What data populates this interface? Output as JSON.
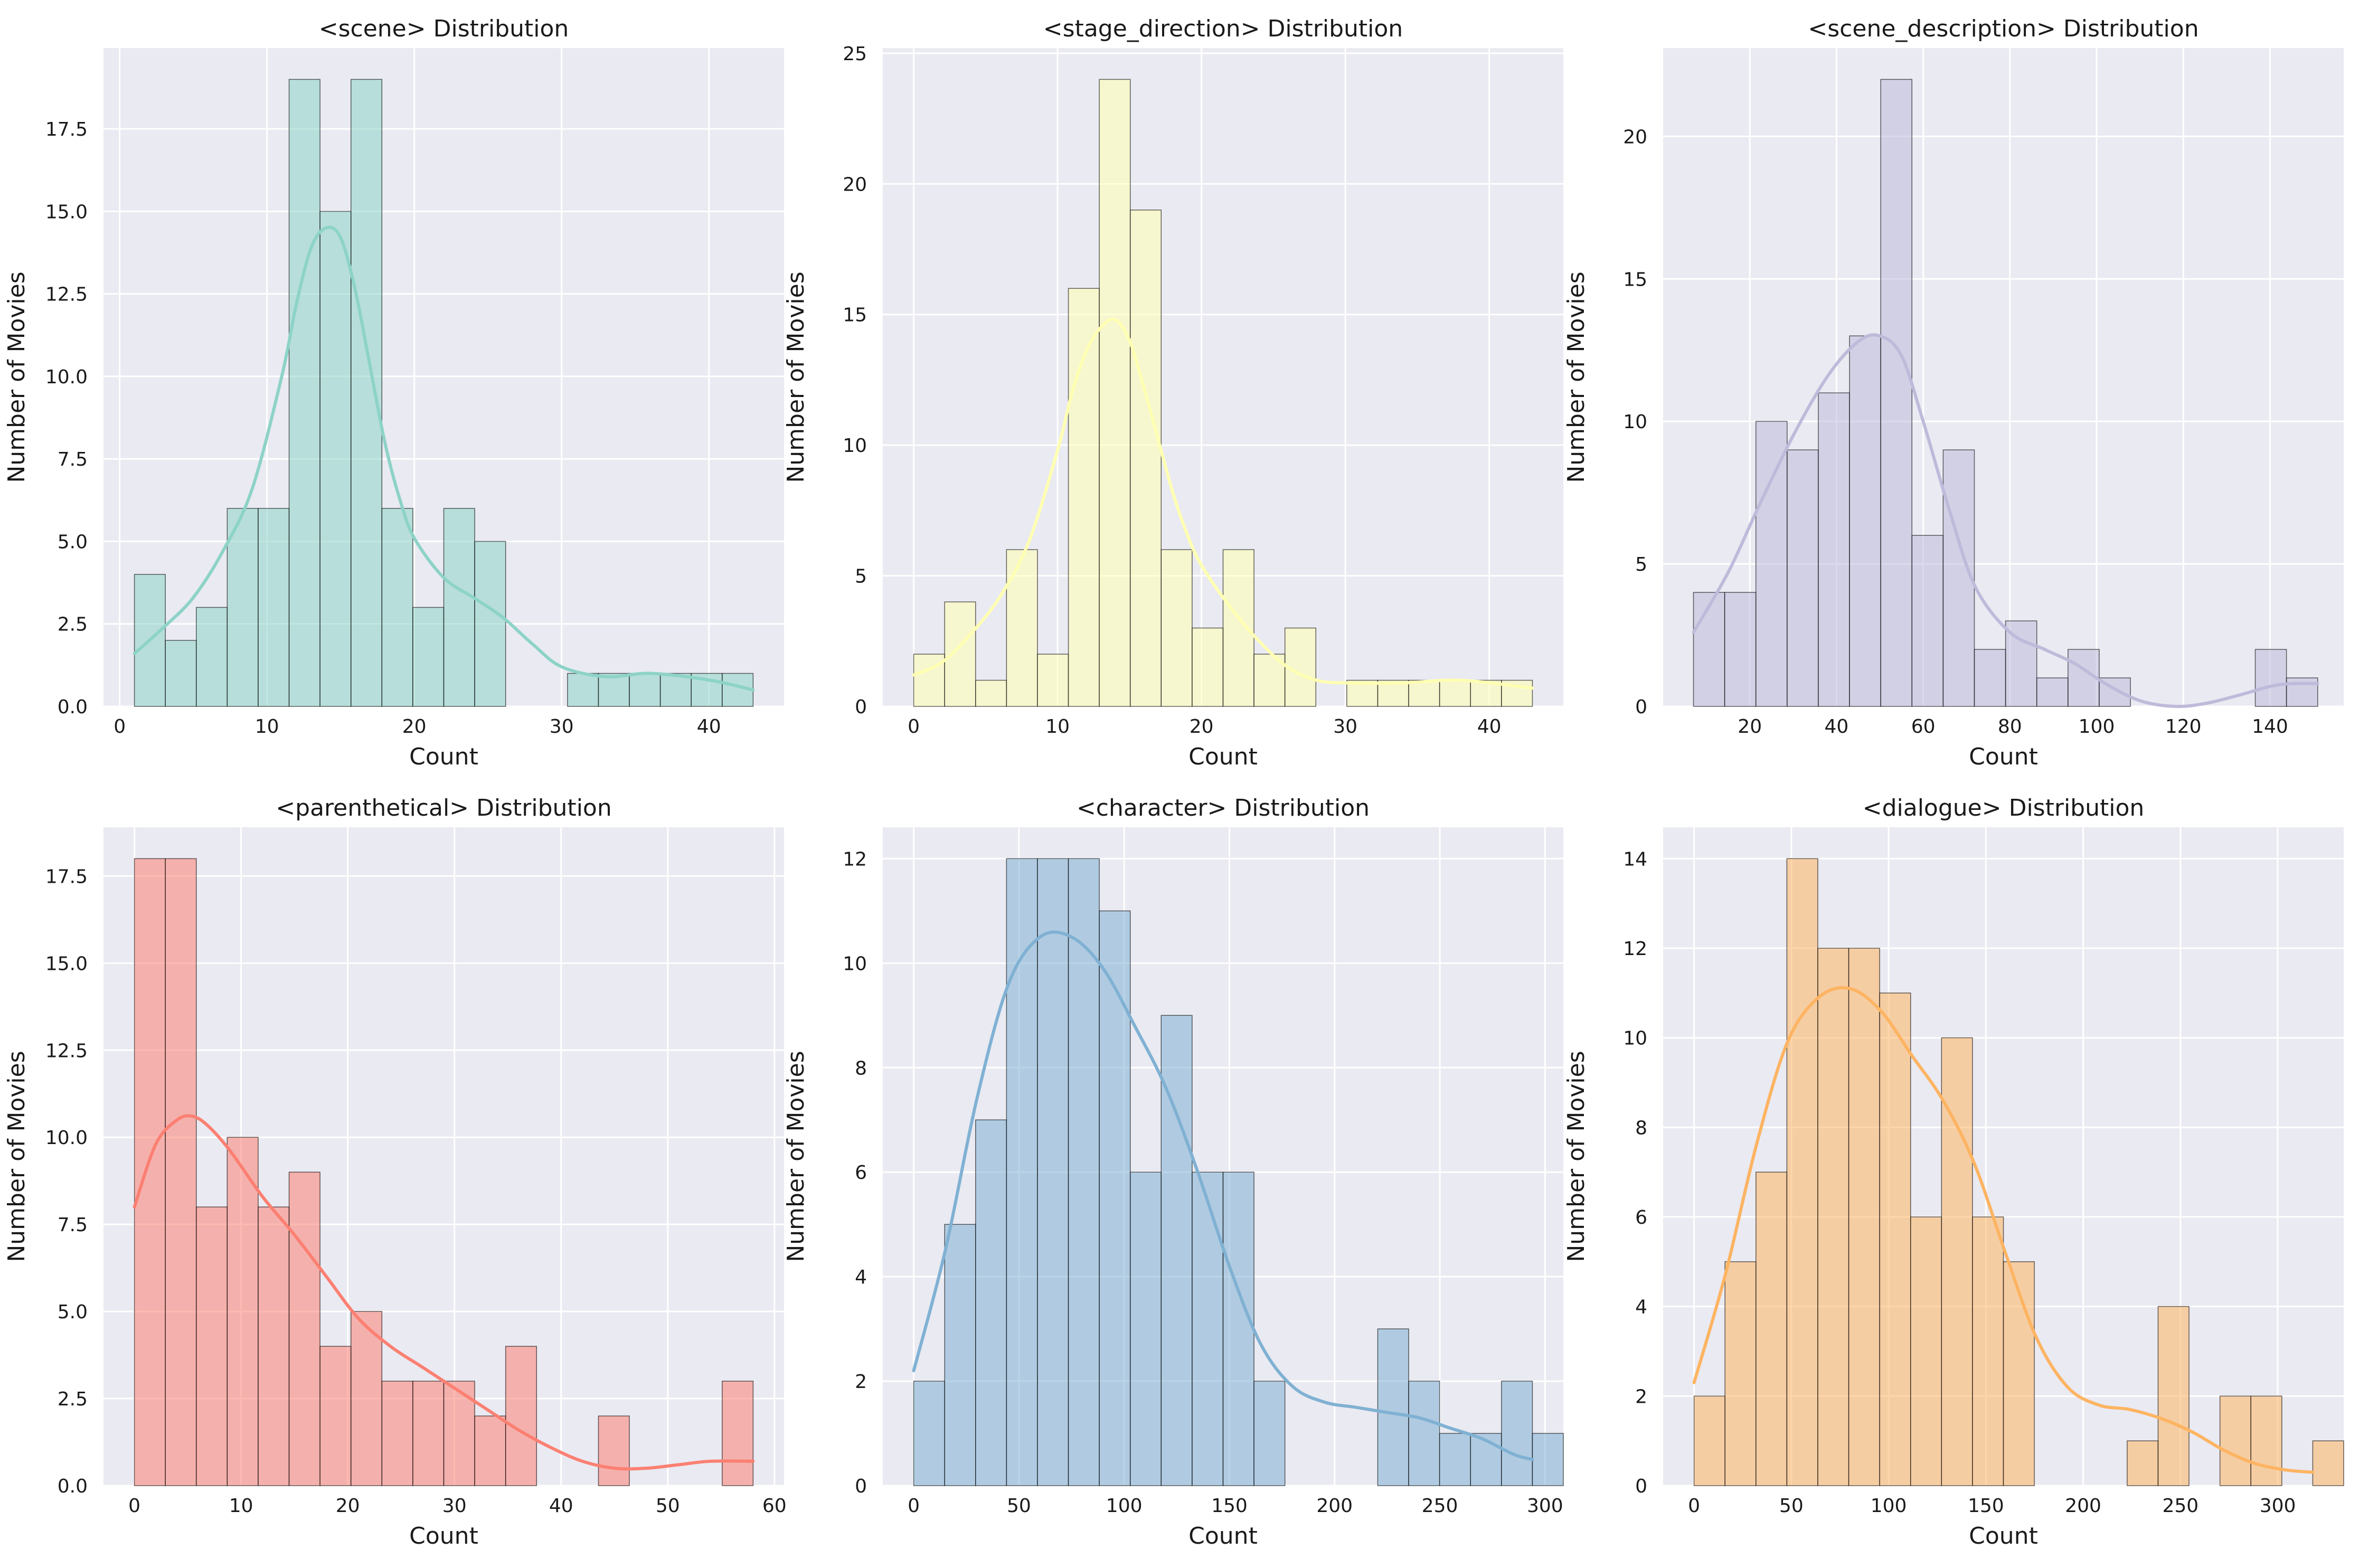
{
  "figure": {
    "background": "#ffffff",
    "axes_facecolor": "#eaeaf2",
    "grid_color": "#ffffff"
  },
  "chart_data": [
    {
      "type": "bar",
      "subtype": "histogram",
      "title": "<scene> Distribution",
      "xlabel": "Count",
      "ylabel": "Number of Movies",
      "color": "#8dd3c7",
      "bin_start": 1,
      "bin_width": 2.1,
      "counts": [
        4,
        2,
        3,
        6,
        6,
        19,
        15,
        19,
        6,
        3,
        6,
        5,
        0,
        0,
        1,
        1,
        1,
        1,
        1,
        1
      ],
      "xlim": [
        -1.1,
        45.1
      ],
      "ylim": [
        0,
        19.95
      ],
      "xticks": [
        0,
        10,
        20,
        30,
        40
      ],
      "xtick_labels": [
        "0",
        "10",
        "20",
        "30",
        "40"
      ],
      "yticks": [
        0,
        2.5,
        5,
        7.5,
        10,
        12.5,
        15,
        17.5
      ],
      "ytick_labels": [
        "0.0",
        "2.5",
        "5.0",
        "7.5",
        "10.0",
        "12.5",
        "15.0",
        "17.5"
      ],
      "kde": {
        "x": [
          1,
          3,
          5,
          7,
          9,
          11,
          12,
          13,
          14,
          15,
          16,
          17,
          18,
          19,
          20,
          22,
          24,
          26,
          28,
          30,
          33,
          36,
          40,
          43
        ],
        "y": [
          1.6,
          2.4,
          3.3,
          4.7,
          6.6,
          10.0,
          12.2,
          13.9,
          14.5,
          14.2,
          12.6,
          10.3,
          8.0,
          6.3,
          5.1,
          3.9,
          3.3,
          2.7,
          1.9,
          1.2,
          0.9,
          1.0,
          0.8,
          0.5
        ]
      }
    },
    {
      "type": "bar",
      "subtype": "histogram",
      "title": "<stage_direction> Distribution",
      "xlabel": "Count",
      "ylabel": "Number of Movies",
      "color": "#ffffb3",
      "bin_start": 0,
      "bin_width": 2.15,
      "counts": [
        2,
        4,
        1,
        6,
        2,
        16,
        24,
        19,
        6,
        3,
        6,
        2,
        3,
        0,
        1,
        1,
        1,
        1,
        1,
        1
      ],
      "xlim": [
        -2.15,
        45.15
      ],
      "ylim": [
        0,
        25.2
      ],
      "xticks": [
        0,
        10,
        20,
        30,
        40
      ],
      "xtick_labels": [
        "0",
        "10",
        "20",
        "30",
        "40"
      ],
      "yticks": [
        0,
        5,
        10,
        15,
        20,
        25
      ],
      "ytick_labels": [
        "0",
        "5",
        "10",
        "15",
        "20",
        "25"
      ],
      "kde": {
        "x": [
          0,
          2,
          4,
          6,
          8,
          10,
          11,
          12,
          13,
          14,
          15,
          16,
          17,
          18,
          19,
          20,
          22,
          24,
          26,
          28,
          30,
          34,
          38,
          43
        ],
        "y": [
          1.2,
          1.7,
          2.8,
          4.2,
          6.3,
          9.8,
          12.0,
          13.6,
          14.5,
          14.8,
          14.0,
          12.2,
          10.2,
          8.2,
          6.6,
          5.4,
          3.8,
          2.5,
          1.5,
          1.0,
          0.9,
          0.9,
          1.0,
          0.7
        ]
      }
    },
    {
      "type": "bar",
      "subtype": "histogram",
      "title": "<scene_description> Distribution",
      "xlabel": "Count",
      "ylabel": "Number of Movies",
      "color": "#bebada",
      "bin_start": 7,
      "bin_width": 7.2,
      "counts": [
        4,
        4,
        10,
        9,
        11,
        13,
        22,
        6,
        9,
        2,
        3,
        1,
        2,
        1,
        0,
        0,
        0,
        0,
        2,
        1
      ],
      "xlim": [
        0,
        157
      ],
      "ylim": [
        0,
        23.1
      ],
      "xticks": [
        20,
        40,
        60,
        80,
        100,
        120,
        140
      ],
      "xtick_labels": [
        "20",
        "40",
        "60",
        "80",
        "100",
        "120",
        "140"
      ],
      "yticks": [
        0,
        5,
        10,
        15,
        20
      ],
      "ytick_labels": [
        "0",
        "5",
        "10",
        "15",
        "20"
      ],
      "kde": {
        "x": [
          7,
          15,
          22,
          30,
          38,
          45,
          50,
          55,
          60,
          66,
          72,
          80,
          88,
          95,
          102,
          110,
          118,
          125,
          133,
          140,
          145,
          151
        ],
        "y": [
          2.6,
          4.7,
          7.0,
          9.5,
          11.6,
          12.8,
          13.0,
          12.3,
          10.0,
          6.9,
          4.2,
          2.6,
          2.0,
          1.5,
          0.8,
          0.2,
          0.0,
          0.1,
          0.4,
          0.7,
          0.8,
          0.8
        ]
      }
    },
    {
      "type": "bar",
      "subtype": "histogram",
      "title": "<parenthetical> Distribution",
      "xlabel": "Count",
      "ylabel": "Number of Movies",
      "color": "#fb8072",
      "bin_start": 0,
      "bin_width": 2.9,
      "counts": [
        18,
        18,
        8,
        10,
        8,
        9,
        4,
        5,
        3,
        3,
        3,
        2,
        4,
        0,
        0,
        2,
        0,
        0,
        0,
        3
      ],
      "xlim": [
        -2.9,
        60.9
      ],
      "ylim": [
        0,
        18.9
      ],
      "xticks": [
        0,
        10,
        20,
        30,
        40,
        50,
        60
      ],
      "xtick_labels": [
        "0",
        "10",
        "20",
        "30",
        "40",
        "50",
        "60"
      ],
      "yticks": [
        0,
        2.5,
        5,
        7.5,
        10,
        12.5,
        15,
        17.5
      ],
      "ytick_labels": [
        "0.0",
        "2.5",
        "5.0",
        "7.5",
        "10.0",
        "12.5",
        "15.0",
        "17.5"
      ],
      "kde": {
        "x": [
          0,
          2,
          4,
          5.5,
          7,
          9,
          12,
          15,
          18,
          21,
          24,
          27,
          30,
          33,
          36,
          39,
          42,
          45,
          48,
          51,
          54,
          58
        ],
        "y": [
          8.0,
          9.8,
          10.5,
          10.6,
          10.3,
          9.6,
          8.3,
          7.2,
          6.0,
          4.8,
          4.0,
          3.4,
          2.8,
          2.2,
          1.6,
          1.1,
          0.7,
          0.5,
          0.5,
          0.6,
          0.7,
          0.7
        ]
      }
    },
    {
      "type": "bar",
      "subtype": "histogram",
      "title": "<character> Distribution",
      "xlabel": "Count",
      "ylabel": "Number of Movies",
      "color": "#80b1d3",
      "bin_start": 0,
      "bin_width": 14.7,
      "counts": [
        2,
        5,
        7,
        12,
        12,
        12,
        11,
        6,
        9,
        6,
        6,
        2,
        0,
        0,
        0,
        3,
        2,
        1,
        1,
        2,
        1
      ],
      "xlim": [
        -14.7,
        308.7
      ],
      "ylim": [
        0,
        12.6
      ],
      "xticks": [
        0,
        50,
        100,
        150,
        200,
        250,
        300
      ],
      "xtick_labels": [
        "0",
        "50",
        "100",
        "150",
        "200",
        "250",
        "300"
      ],
      "yticks": [
        0,
        2,
        4,
        6,
        8,
        10,
        12
      ],
      "ytick_labels": [
        "0",
        "2",
        "4",
        "6",
        "8",
        "10",
        "12"
      ],
      "kde": {
        "x": [
          0,
          15,
          30,
          45,
          60,
          75,
          90,
          105,
          120,
          135,
          150,
          165,
          180,
          195,
          210,
          225,
          240,
          255,
          270,
          285,
          294
        ],
        "y": [
          2.2,
          4.5,
          7.4,
          9.6,
          10.5,
          10.5,
          9.9,
          8.8,
          7.6,
          6.0,
          4.2,
          2.7,
          1.9,
          1.6,
          1.5,
          1.4,
          1.3,
          1.1,
          0.9,
          0.6,
          0.5
        ]
      }
    },
    {
      "type": "bar",
      "subtype": "histogram",
      "title": "<dialogue> Distribution",
      "xlabel": "Count",
      "ylabel": "Number of Movies",
      "color": "#fdb462",
      "bin_start": 0,
      "bin_width": 15.9,
      "counts": [
        2,
        5,
        7,
        14,
        12,
        12,
        11,
        6,
        10,
        6,
        5,
        0,
        0,
        0,
        1,
        4,
        0,
        2,
        2,
        0,
        1
      ],
      "xlim": [
        -15.9,
        333.9
      ],
      "ylim": [
        0,
        14.7
      ],
      "xticks": [
        0,
        50,
        100,
        150,
        200,
        250,
        300
      ],
      "xtick_labels": [
        "0",
        "50",
        "100",
        "150",
        "200",
        "250",
        "300"
      ],
      "yticks": [
        0,
        2,
        4,
        6,
        8,
        10,
        12,
        14
      ],
      "ytick_labels": [
        "0",
        "2",
        "4",
        "6",
        "8",
        "10",
        "12",
        "14"
      ],
      "kde": {
        "x": [
          0,
          16,
          32,
          48,
          64,
          80,
          96,
          112,
          128,
          144,
          160,
          176,
          192,
          208,
          224,
          240,
          256,
          272,
          288,
          304,
          318
        ],
        "y": [
          2.3,
          4.7,
          7.6,
          9.9,
          10.9,
          11.1,
          10.6,
          9.6,
          8.6,
          7.2,
          5.2,
          3.3,
          2.2,
          1.8,
          1.7,
          1.5,
          1.2,
          0.8,
          0.5,
          0.35,
          0.3
        ]
      }
    }
  ]
}
